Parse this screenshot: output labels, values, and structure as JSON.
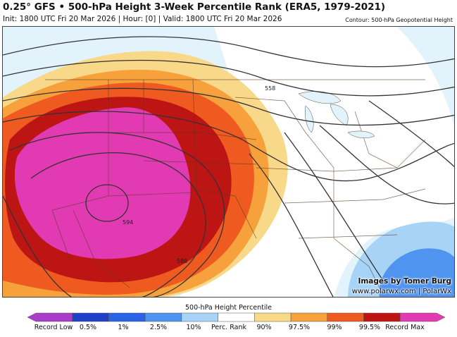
{
  "header": {
    "title": "0.25° GFS • 500-hPa Height 3-Week Percentile Rank (ERA5, 1979-2021)",
    "subtitle": "Init: 1800 UTC Fri 20 Mar 2026 | Hour: [0] | Valid: 1800 UTC Fri 20 Mar 2026",
    "contour_note": "Contour: 500-hPa Geopotential Height"
  },
  "map": {
    "contour_labels": [
      "558",
      "588",
      "594"
    ]
  },
  "credits": {
    "line1": "Images by Tomer Burg",
    "line2": "www.polarwx.com | PolarWx"
  },
  "colorbar": {
    "title": "500-hPa Height Percentile",
    "labels": [
      "Record Low",
      "0.5%",
      "1%",
      "2.5%",
      "10%",
      "Perc. Rank",
      "90%",
      "97.5%",
      "99%",
      "99.5%",
      "Record Max"
    ],
    "colors": {
      "record_low": "#a83dc9",
      "p0_5": "#1f3fc6",
      "p1": "#2a63e6",
      "p2_5": "#4f94ef",
      "p10": "#a6d3f6",
      "mid": "#ffffff",
      "p90": "#f8d98a",
      "p97_5": "#f7a13c",
      "p99": "#ef5a20",
      "p99_5": "#bd1414",
      "record_max": "#e13ab3"
    }
  }
}
